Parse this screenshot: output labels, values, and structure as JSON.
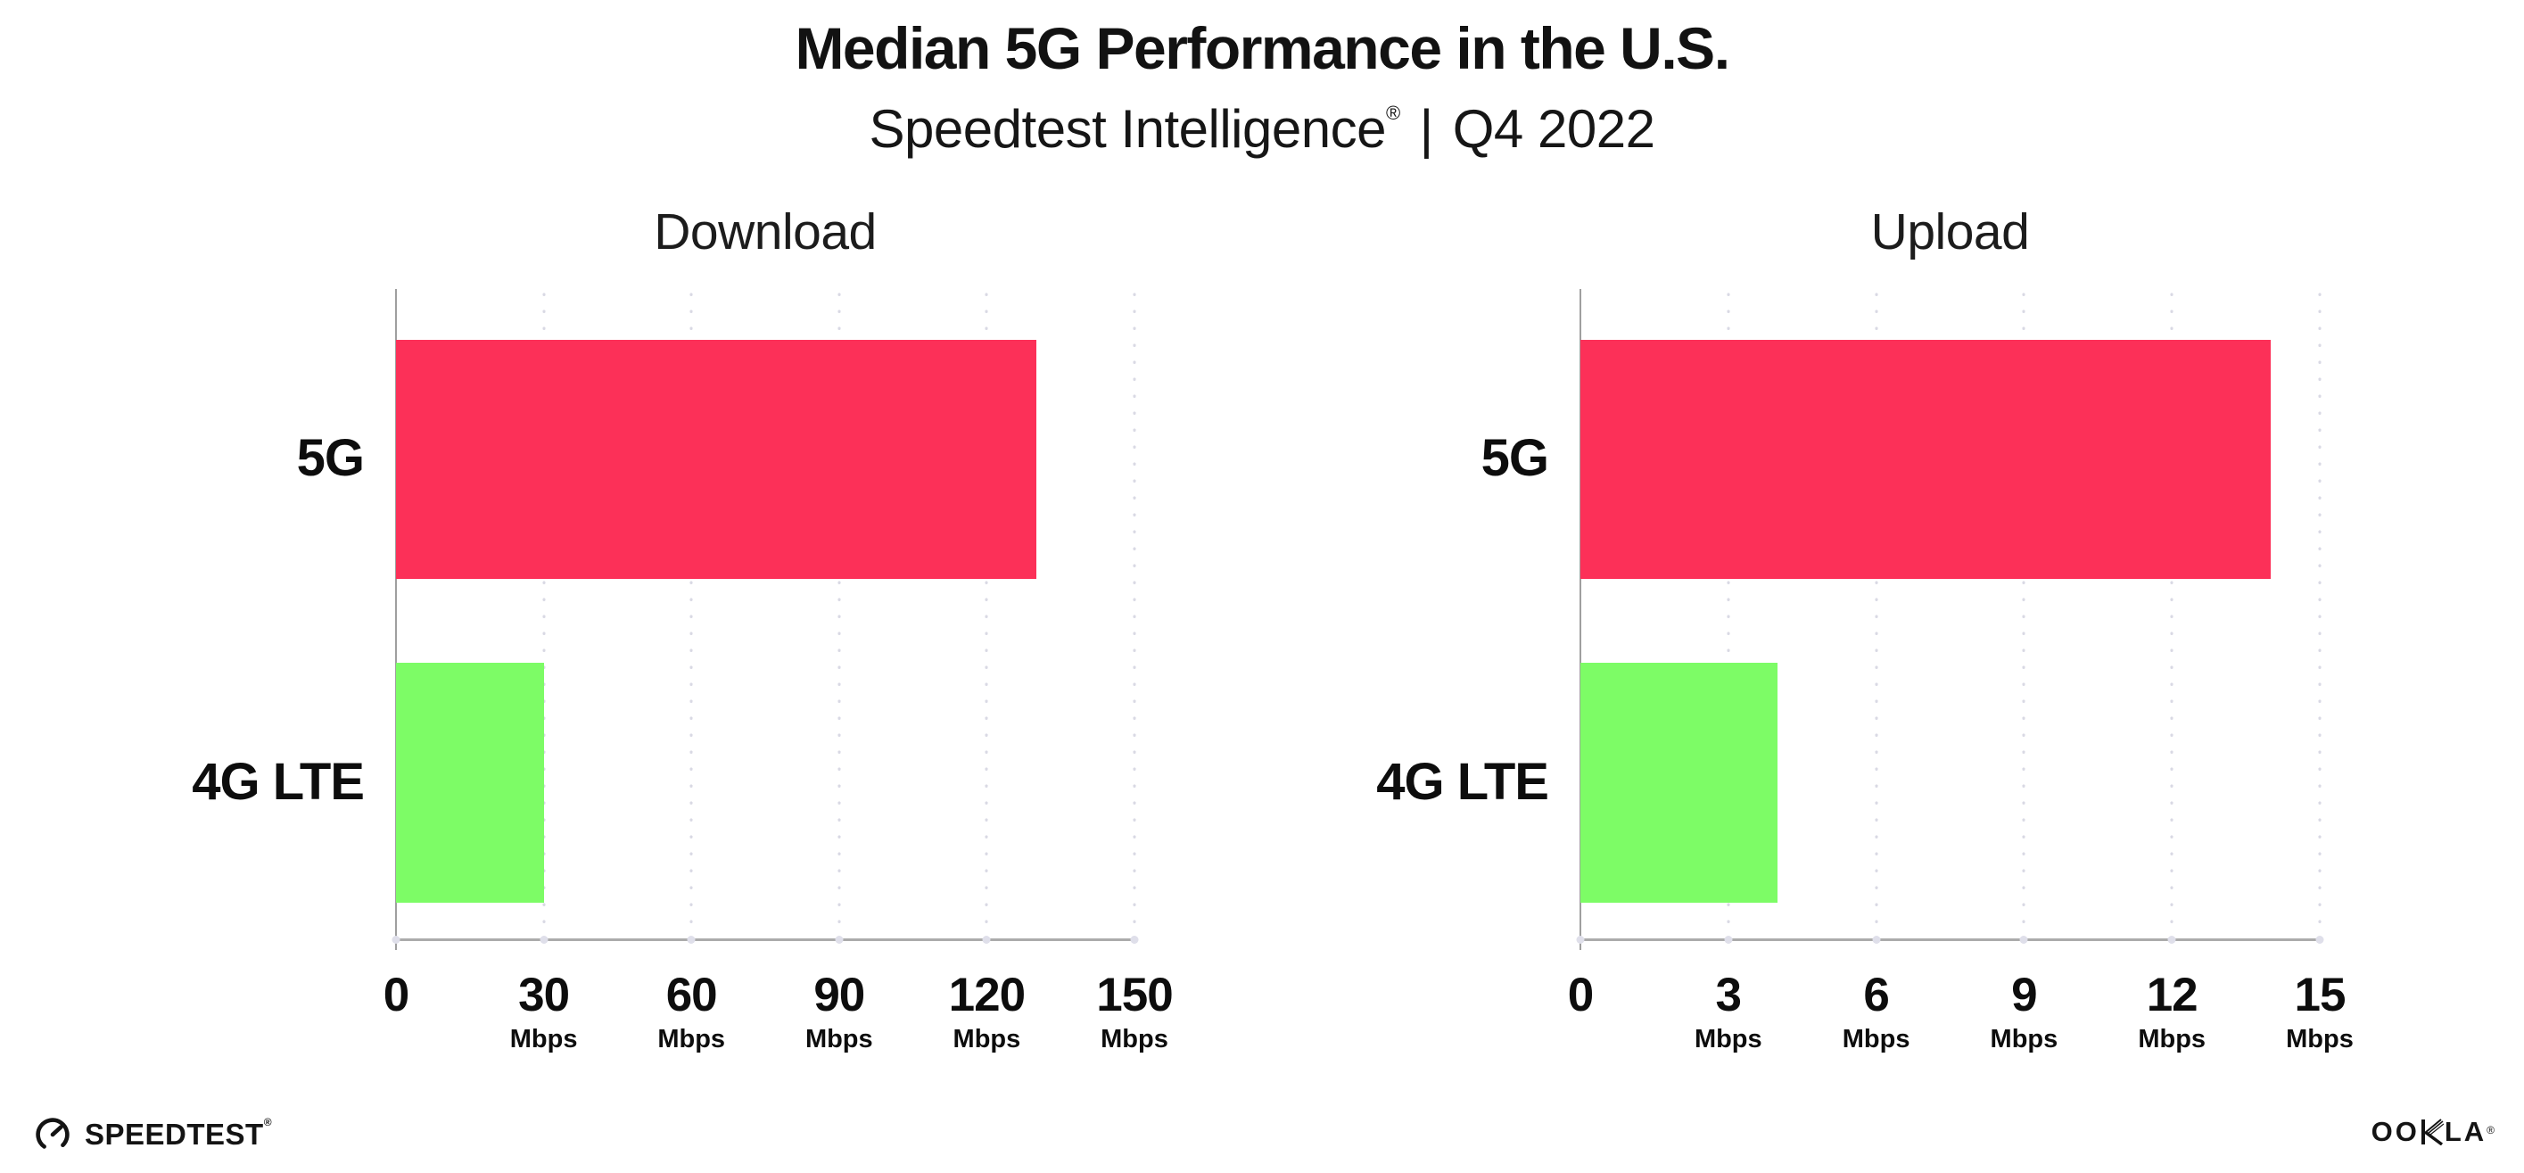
{
  "header": {
    "title": "Median 5G Performance in the U.S.",
    "subtitle": {
      "brand": "Speedtest Intelligence",
      "registered_mark": "®",
      "separator": "|",
      "period": "Q4 2022"
    }
  },
  "chart_data": [
    {
      "type": "bar",
      "orientation": "horizontal",
      "title": "Download",
      "categories": [
        "5G",
        "4G LTE"
      ],
      "values": [
        130,
        30
      ],
      "unit": "Mbps",
      "xlim": [
        0,
        150
      ],
      "xticks": [
        0,
        30,
        60,
        90,
        120,
        150
      ],
      "bar_colors": [
        "#FC3058",
        "#7DFC66"
      ],
      "grid": "vertical-dotted",
      "legend": "none"
    },
    {
      "type": "bar",
      "orientation": "horizontal",
      "title": "Upload",
      "categories": [
        "5G",
        "4G LTE"
      ],
      "values": [
        14,
        4
      ],
      "unit": "Mbps",
      "xlim": [
        0,
        15
      ],
      "xticks": [
        0,
        3,
        6,
        9,
        12,
        15
      ],
      "bar_colors": [
        "#FC3058",
        "#7DFC66"
      ],
      "grid": "vertical-dotted",
      "legend": "none"
    }
  ],
  "footer": {
    "speedtest": {
      "label": "SPEEDTEST",
      "mark": "®",
      "icon": "speedtest-gauge-icon"
    },
    "ookla": {
      "pre": "OO",
      "post": "LA",
      "mark": "®",
      "icon": "ookla-k-icon"
    }
  }
}
